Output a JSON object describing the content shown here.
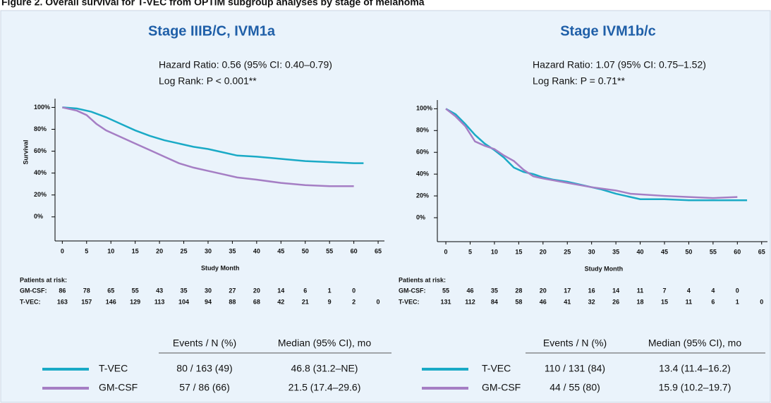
{
  "figure_title": "Figure 2. Overall survival for T-VEC from OPTiM subgroup analyses by stage of melanoma",
  "chart_data": [
    {
      "type": "line",
      "title": "Stage IIIB/C, IVM1a",
      "annotations": [
        "Hazard Ratio: 0.56 (95% CI: 0.40–0.79)",
        "Log Rank:  P < 0.001**"
      ],
      "xlabel": "Study Month",
      "ylabel": "Survival",
      "xlim": [
        -1.5,
        66.3
      ],
      "ylim": [
        -22,
        108
      ],
      "xticks": [
        0,
        5,
        10,
        15,
        20,
        25,
        30,
        35,
        40,
        45,
        50,
        55,
        60,
        65
      ],
      "yticks": [
        {
          "value": 0,
          "label": "0%"
        },
        {
          "value": 20,
          "label": "20%"
        },
        {
          "value": 40,
          "label": "40%"
        },
        {
          "value": 60,
          "label": "60%"
        },
        {
          "value": 80,
          "label": "80%"
        },
        {
          "value": 100,
          "label": "100%"
        }
      ],
      "series": [
        {
          "name": "T-VEC",
          "color": "#1aaac6",
          "x": [
            0,
            3,
            6,
            9,
            12,
            15,
            18,
            21,
            24,
            27,
            30,
            33,
            36,
            40,
            45,
            50,
            55,
            60,
            62
          ],
          "values": [
            100,
            99,
            96,
            91,
            85,
            79,
            74,
            70,
            67,
            64,
            62,
            59,
            56,
            55,
            53,
            51,
            50,
            49,
            49
          ]
        },
        {
          "name": "GM-CSF",
          "color": "#a57ec4",
          "x": [
            0,
            3,
            5,
            7,
            9,
            12,
            15,
            18,
            21,
            24,
            27,
            30,
            33,
            36,
            40,
            45,
            50,
            55,
            60
          ],
          "values": [
            100,
            97,
            93,
            85,
            79,
            73,
            67,
            61,
            55,
            49,
            45,
            42,
            39,
            36,
            34,
            31,
            29,
            28,
            28
          ]
        }
      ],
      "at_risk": {
        "title": "Patients at risk:",
        "rows": [
          {
            "label": "GM-CSF:",
            "values": [
              "86",
              "78",
              "65",
              "55",
              "43",
              "35",
              "30",
              "27",
              "20",
              "14",
              "6",
              "1",
              "0"
            ]
          },
          {
            "label": "T-VEC:",
            "values": [
              "163",
              "157",
              "146",
              "129",
              "113",
              "104",
              "94",
              "88",
              "68",
              "42",
              "21",
              "9",
              "2",
              "0"
            ]
          }
        ]
      },
      "summary_table": {
        "headers": [
          "Events / N (%)",
          "Median (95% CI), mo"
        ],
        "rows": [
          [
            "80 / 163 (49)",
            "46.8 (31.2–NE)"
          ],
          [
            "57 / 86  (66)",
            "21.5 (17.4–29.6)"
          ]
        ]
      }
    },
    {
      "type": "line",
      "title": "Stage IVM1b/c",
      "annotations": [
        "Hazard Ratio: 1.07 (95% CI: 0.75–1.52)",
        "Log Rank:  P = 0.71**"
      ],
      "xlabel": "Study Month",
      "xlim": [
        -1.75,
        66.2
      ],
      "ylim": [
        -22,
        108
      ],
      "xticks": [
        0,
        5,
        10,
        15,
        20,
        25,
        30,
        35,
        40,
        45,
        50,
        55,
        60,
        65
      ],
      "yticks": [
        {
          "value": 0,
          "label": "0%"
        },
        {
          "value": 20,
          "label": "20%"
        },
        {
          "value": 40,
          "label": "40%"
        },
        {
          "value": 60,
          "label": "60%"
        },
        {
          "value": 80,
          "label": "80%"
        },
        {
          "value": 100,
          "label": "100%"
        }
      ],
      "series": [
        {
          "name": "T-VEC",
          "color": "#1aaac6",
          "x": [
            0,
            2,
            4,
            6,
            8,
            10,
            12,
            14,
            16,
            18,
            20,
            22,
            25,
            28,
            32,
            35,
            38,
            40,
            45,
            50,
            55,
            60,
            62
          ],
          "values": [
            100,
            95,
            86,
            76,
            68,
            62,
            55,
            46,
            42,
            40,
            37,
            35,
            33,
            30,
            26,
            22,
            19,
            17,
            17,
            16,
            16,
            16,
            16
          ]
        },
        {
          "name": "GM-CSF",
          "color": "#a57ec4",
          "x": [
            0,
            2,
            4,
            6,
            8,
            10,
            12,
            14,
            16,
            18,
            20,
            25,
            30,
            35,
            38,
            45,
            50,
            55,
            60
          ],
          "values": [
            100,
            93,
            84,
            70,
            66,
            63,
            57,
            52,
            44,
            38,
            36,
            32,
            28,
            25,
            22,
            20,
            19,
            18,
            19
          ]
        }
      ],
      "at_risk": {
        "title": "Patients at risk:",
        "rows": [
          {
            "label": "GM-CSF:",
            "values": [
              "55",
              "46",
              "35",
              "28",
              "20",
              "17",
              "16",
              "14",
              "11",
              "7",
              "4",
              "4",
              "0"
            ]
          },
          {
            "label": "T-VEC:",
            "values": [
              "131",
              "112",
              "84",
              "58",
              "46",
              "41",
              "32",
              "26",
              "18",
              "15",
              "11",
              "6",
              "1",
              "0"
            ]
          }
        ]
      },
      "summary_table": {
        "headers": [
          "Events / N (%)",
          "Median (95% CI), mo"
        ],
        "rows": [
          [
            "110 / 131 (84)",
            "13.4 (11.4–16.2)"
          ],
          [
            "44 / 55  (80)",
            "15.9 (10.2–19.7)"
          ]
        ]
      }
    }
  ]
}
